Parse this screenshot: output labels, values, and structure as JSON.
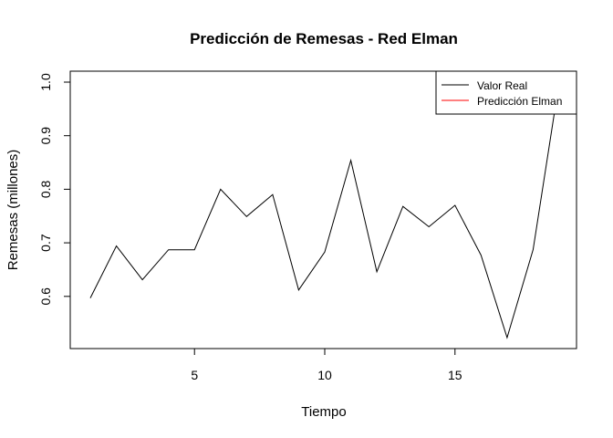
{
  "chart_data": {
    "type": "line",
    "title": "Predicción de Remesas - Red Elman",
    "xlabel": "Tiempo",
    "ylabel": "Remesas (millones)",
    "xlim": [
      1,
      19
    ],
    "ylim": [
      0.523,
      1.0
    ],
    "x_ticks": [
      5,
      10,
      15
    ],
    "y_ticks": [
      0.6,
      0.7,
      0.8,
      0.9,
      1.0
    ],
    "y_tick_labels": [
      "0.6",
      "0.7",
      "0.8",
      "0.9",
      "1.0"
    ],
    "grid": false,
    "legend_position": "top-right",
    "colors": {
      "real": "#000000",
      "pred": "#ff0000"
    },
    "series": [
      {
        "name": "Valor Real",
        "x": [
          1,
          2,
          3,
          4,
          5,
          6,
          7,
          8,
          9,
          10,
          11,
          12,
          13,
          14,
          15,
          16,
          17,
          18,
          19
        ],
        "values": [
          0.597,
          0.694,
          0.631,
          0.687,
          0.687,
          0.8,
          0.749,
          0.79,
          0.612,
          0.683,
          0.854,
          0.646,
          0.768,
          0.73,
          0.77,
          0.677,
          0.523,
          0.687,
          1.0
        ]
      },
      {
        "name": "Predicción Elman",
        "x": [],
        "values": []
      }
    ]
  }
}
